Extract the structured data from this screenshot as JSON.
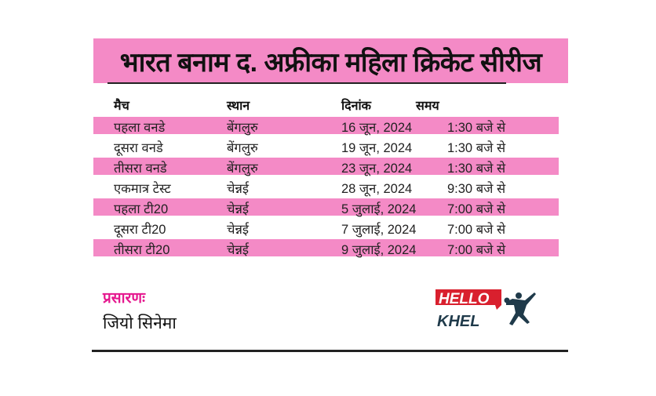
{
  "title": "भारत बनाम द. अफ्रीका महिला क्रिकेट सीरीज",
  "headers": [
    "मैच",
    "स्थान",
    "दिनांक",
    "समय"
  ],
  "rows": [
    [
      "पहला वनडे",
      "बेंगलुरु",
      "16 जून, 2024",
      "1:30 बजे से"
    ],
    [
      "दूसरा वनडे",
      "बेंगलुरु",
      "19 जून, 2024",
      "1:30 बजे से"
    ],
    [
      "तीसरा वनडे",
      "बेंगलुरु",
      "23 जून, 2024",
      "1:30 बजे से"
    ],
    [
      "एकमात्र टेस्ट",
      "चेन्नई",
      "28 जून, 2024",
      "9:30 बजे से"
    ],
    [
      "पहला टी20",
      "चेन्नई",
      "5 जुलाई, 2024",
      "7:00 बजे से"
    ],
    [
      "दूसरा टी20",
      "चेन्नई",
      "7 जुलाई, 2024",
      "7:00 बजे से"
    ],
    [
      "तीसरा टी20",
      "चेन्नई",
      "9 जुलाई, 2024",
      "7:00 बजे से"
    ]
  ],
  "broadcast": {
    "label": "प्रसारणः",
    "value": "जियो सिनेमा"
  },
  "logo": {
    "text_top": "HELLO",
    "text_bottom": "KHEL"
  },
  "colors": {
    "accent_pink": "#f48ac6",
    "label_pink": "#e5178e",
    "logo_red": "#d9202e",
    "logo_navy": "#1f3a4a"
  }
}
